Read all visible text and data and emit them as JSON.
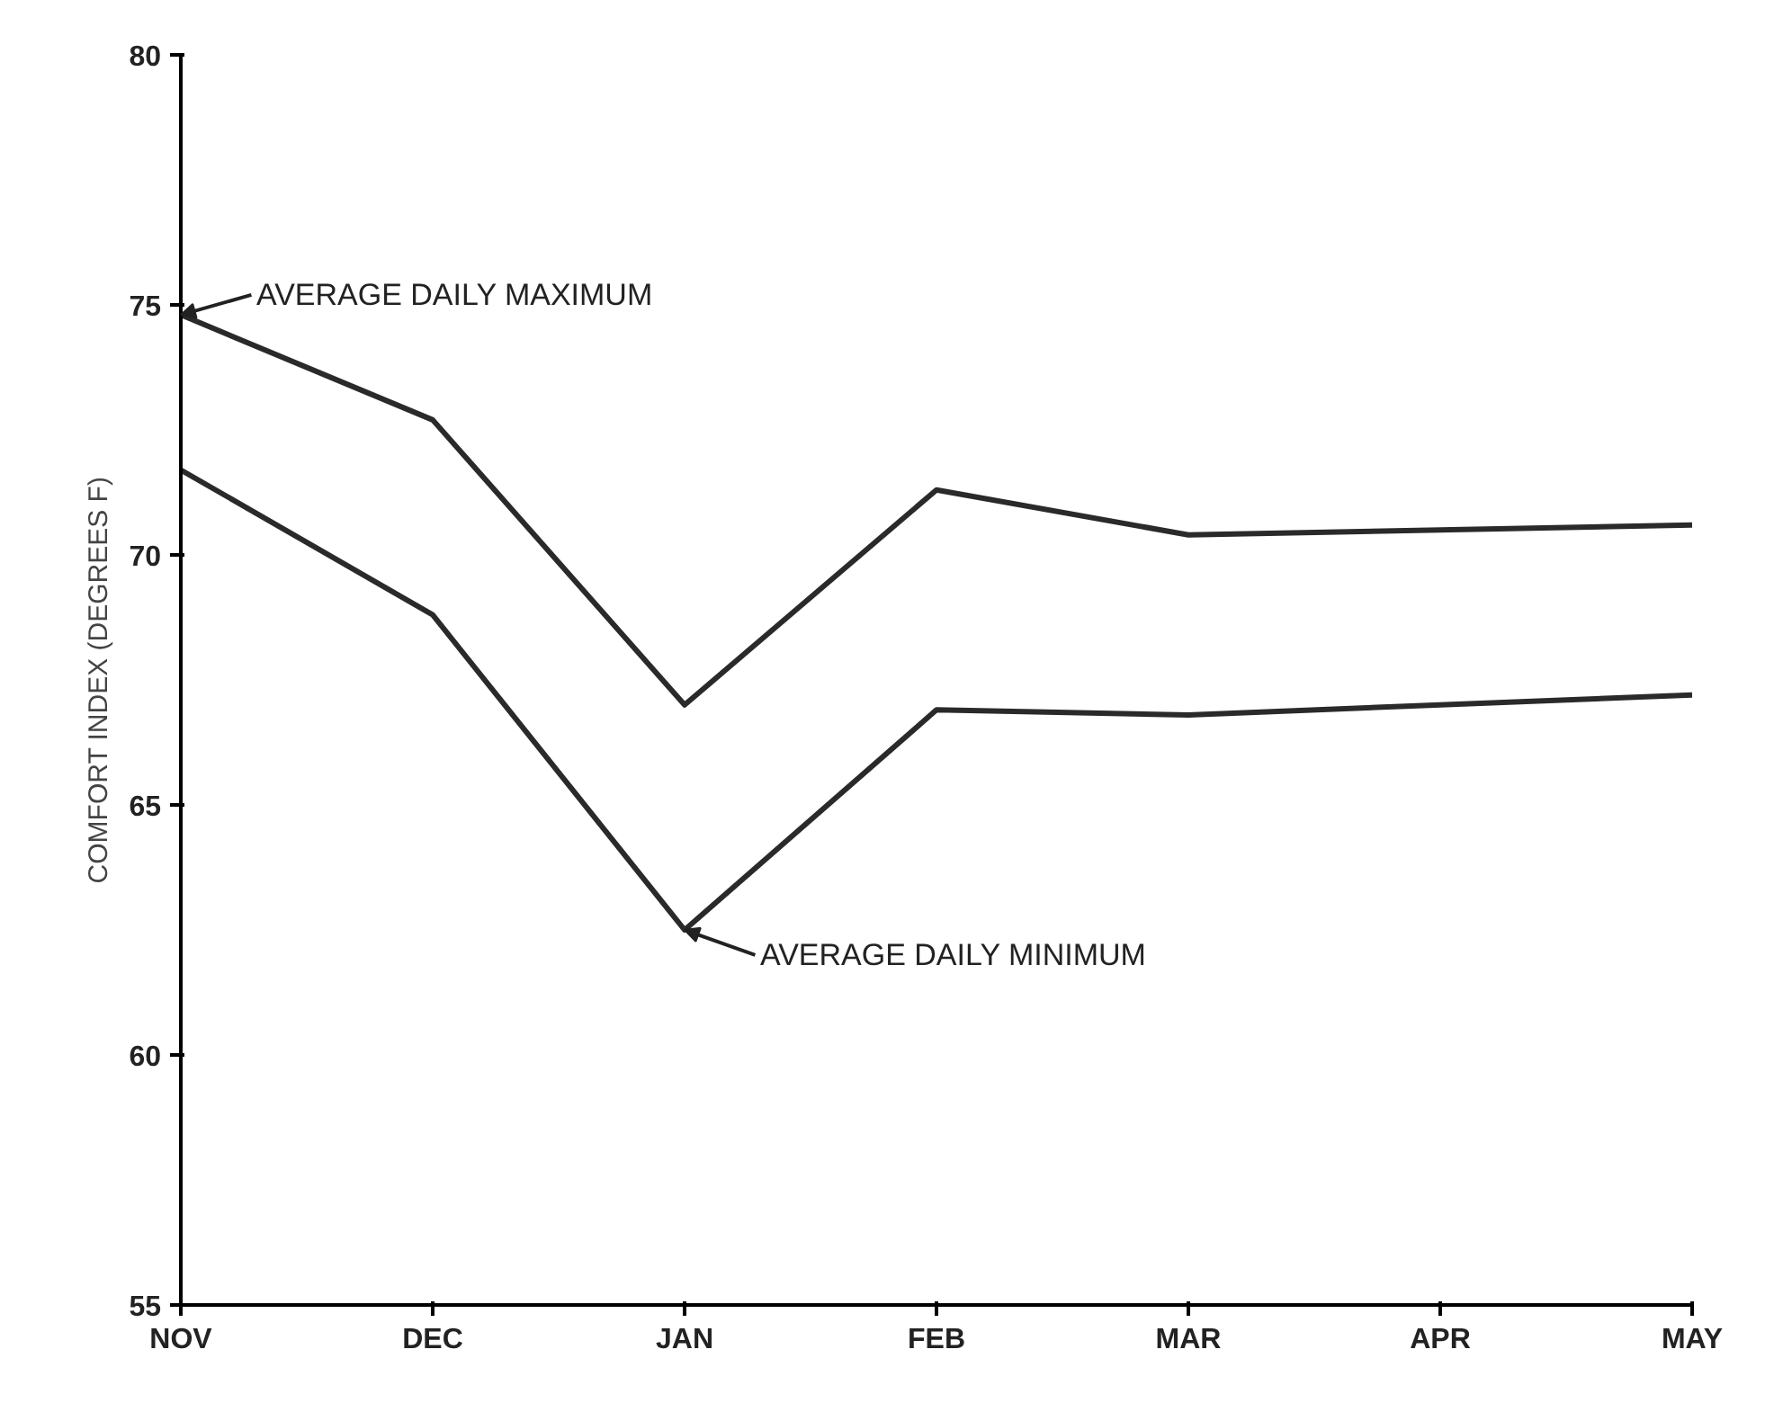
{
  "chart_data": {
    "type": "line",
    "ylabel": "COMFORT INDEX (DEGREES F)",
    "categories": [
      "NOV",
      "DEC",
      "JAN",
      "FEB",
      "MAR",
      "APR",
      "MAY"
    ],
    "series": [
      {
        "color": "#2a2a2a",
        "values": [
          74.8,
          72.7,
          67.0,
          71.3,
          70.4,
          70.5,
          70.6
        ]
      },
      {
        "color": "#2a2a2a",
        "values": [
          71.7,
          68.8,
          62.5,
          66.9,
          66.8,
          67.0,
          67.2
        ]
      }
    ],
    "annotations": [
      {
        "text": "AVERAGE DAILY MAXIMUM",
        "x": "NOV",
        "y": 74.8
      },
      {
        "text": "AVERAGE DAILY MINIMUM",
        "x": "JAN",
        "y": 62.5
      }
    ],
    "ylim": [
      55,
      80
    ],
    "yticks": [
      55,
      60,
      65,
      70,
      75,
      80
    ],
    "grid": false,
    "marker": "none",
    "line_style": "solid"
  }
}
